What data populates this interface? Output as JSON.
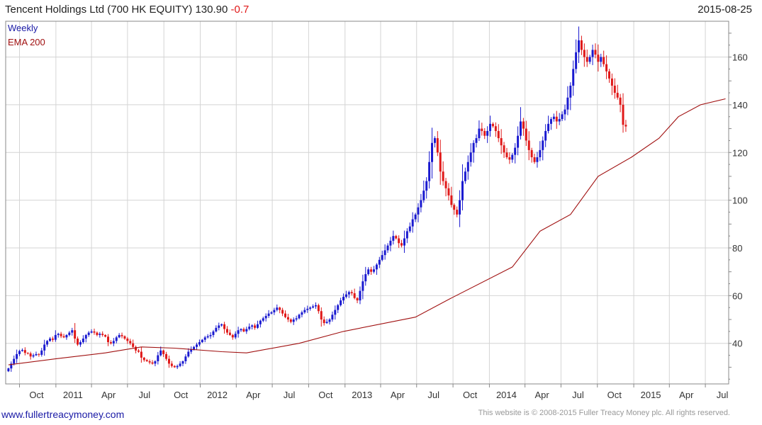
{
  "header": {
    "title": "Tencent Holdings Ltd (700 HK EQUITY)",
    "last": "130.90",
    "change": "-0.7",
    "date": "2015-08-25"
  },
  "legend": {
    "series1": "Weekly",
    "series2": "EMA 200"
  },
  "footer": {
    "website": "www.fullertreacymoney.com",
    "copyright": "This website is © 2008-2015 Fuller Treacy Money plc. All rights reserved."
  },
  "colors": {
    "up": "#1a1ad0",
    "down": "#e01818",
    "ema": "#a01010",
    "grid": "#d4d4d4",
    "axis": "#888888"
  },
  "chart_data": {
    "type": "candlestick",
    "title": "Tencent Holdings Ltd (700 HK EQUITY)",
    "ylim": [
      23,
      175
    ],
    "yticks": [
      40,
      60,
      80,
      100,
      120,
      140,
      160
    ],
    "xticks": [
      {
        "label": "Oct",
        "date": "2010-10-01"
      },
      {
        "label": "2011",
        "date": "2011-01-01"
      },
      {
        "label": "Apr",
        "date": "2011-04-01"
      },
      {
        "label": "Jul",
        "date": "2011-07-01"
      },
      {
        "label": "Oct",
        "date": "2011-10-01"
      },
      {
        "label": "2012",
        "date": "2012-01-01"
      },
      {
        "label": "Apr",
        "date": "2012-04-01"
      },
      {
        "label": "Jul",
        "date": "2012-07-01"
      },
      {
        "label": "Oct",
        "date": "2012-10-01"
      },
      {
        "label": "2013",
        "date": "2013-01-01"
      },
      {
        "label": "Apr",
        "date": "2013-04-01"
      },
      {
        "label": "Jul",
        "date": "2013-07-01"
      },
      {
        "label": "Oct",
        "date": "2013-10-01"
      },
      {
        "label": "2014",
        "date": "2014-01-01"
      },
      {
        "label": "Apr",
        "date": "2014-04-01"
      },
      {
        "label": "Jul",
        "date": "2014-07-01"
      },
      {
        "label": "Oct",
        "date": "2014-10-01"
      },
      {
        "label": "2015",
        "date": "2015-01-01"
      },
      {
        "label": "Apr",
        "date": "2015-04-01"
      },
      {
        "label": "Jul",
        "date": "2015-07-01"
      }
    ],
    "series": [
      {
        "name": "Weekly",
        "x_start": "2010-09-03",
        "x_step_days": 7,
        "close": [
          29.5,
          31.5,
          33.5,
          35.5,
          36.8,
          37.2,
          36.0,
          35.8,
          34.5,
          35.0,
          35.5,
          35.2,
          37.0,
          39.5,
          41.0,
          42.0,
          41.5,
          43.5,
          44.0,
          43.0,
          42.5,
          43.5,
          44.5,
          45.5,
          42.0,
          39.5,
          40.5,
          42.0,
          43.5,
          44.5,
          45.0,
          44.5,
          43.5,
          44.0,
          43.5,
          42.8,
          40.5,
          40.0,
          41.0,
          42.5,
          43.5,
          43.0,
          42.0,
          41.0,
          40.0,
          38.5,
          37.0,
          36.5,
          34.0,
          33.0,
          32.5,
          32.0,
          31.5,
          32.5,
          35.0,
          37.0,
          35.5,
          33.5,
          31.5,
          30.5,
          30.0,
          30.5,
          31.5,
          32.5,
          34.5,
          36.5,
          37.5,
          38.5,
          39.5,
          40.5,
          41.5,
          42.5,
          43.0,
          43.5,
          45.0,
          46.5,
          47.5,
          48.0,
          46.0,
          44.5,
          43.5,
          42.5,
          44.0,
          45.5,
          46.0,
          45.0,
          46.0,
          47.0,
          47.5,
          46.5,
          48.0,
          49.5,
          50.5,
          51.5,
          52.5,
          53.0,
          54.0,
          55.0,
          54.0,
          52.5,
          51.0,
          50.0,
          49.0,
          50.0,
          50.5,
          52.0,
          53.0,
          54.0,
          54.5,
          55.0,
          55.5,
          56.0,
          53.5,
          50.0,
          48.5,
          49.0,
          50.0,
          52.0,
          54.0,
          56.0,
          58.0,
          59.5,
          60.5,
          61.5,
          61.0,
          59.0,
          58.0,
          62.0,
          66.0,
          69.0,
          71.0,
          70.0,
          71.0,
          73.0,
          75.0,
          77.0,
          79.0,
          81.0,
          83.0,
          85.0,
          84.0,
          82.0,
          81.0,
          84.0,
          87.0,
          89.0,
          92.0,
          94.0,
          97.0,
          100.0,
          104.0,
          108.0,
          116.0,
          124.0,
          126.0,
          120.0,
          112.0,
          108.0,
          105.0,
          102.0,
          98.0,
          96.0,
          94.0,
          100.0,
          108.0,
          112.0,
          116.0,
          120.0,
          124.0,
          126.0,
          130.0,
          129.0,
          127.0,
          129.0,
          132.0,
          131.0,
          129.0,
          126.0,
          123.0,
          120.0,
          118.0,
          117.0,
          119.0,
          122.0,
          127.0,
          133.0,
          130.0,
          125.0,
          121.0,
          118.0,
          116.0,
          118.0,
          121.0,
          125.0,
          129.0,
          132.0,
          134.0,
          135.0,
          133.0,
          134.0,
          136.0,
          138.0,
          143.0,
          148.0,
          155.0,
          162.0,
          167.0,
          163.0,
          160.0,
          158.0,
          160.0,
          163.0,
          161.0,
          158.0,
          160.0,
          157.0,
          154.0,
          151.0,
          148.0,
          145.0,
          143.0,
          140.0,
          131.6,
          130.9
        ]
      },
      {
        "name": "EMA 200",
        "x": [
          "2010-09-03",
          "2010-12-31",
          "2011-05-06",
          "2011-08-05",
          "2011-10-28",
          "2012-02-24",
          "2012-04-27",
          "2012-09-07",
          "2012-12-28",
          "2013-06-28",
          "2013-09-27",
          "2014-02-28",
          "2014-05-09",
          "2014-07-25",
          "2014-10-03",
          "2014-12-26",
          "2015-03-06",
          "2015-04-24",
          "2015-06-19",
          "2015-08-21"
        ],
        "values": [
          31.0,
          33.5,
          36.0,
          38.5,
          38.0,
          36.5,
          36.0,
          40.0,
          45.0,
          51.0,
          59.0,
          72.0,
          87.0,
          94.0,
          110.0,
          118.0,
          126.0,
          135.0,
          140.0,
          142.5
        ]
      }
    ]
  }
}
